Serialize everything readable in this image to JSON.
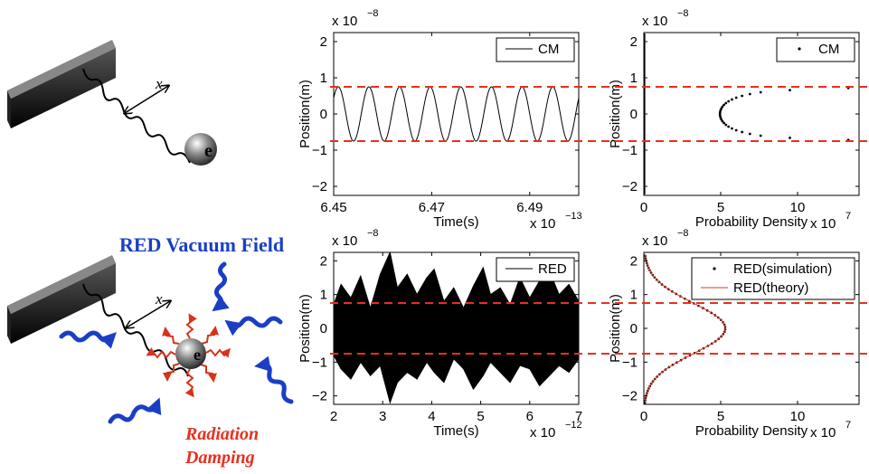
{
  "illustration": {
    "top": {
      "displacement_label": "x",
      "electron_label": "e"
    },
    "bottom": {
      "field_label": "RED Vacuum Field",
      "damping_line1": "Radiation",
      "damping_line2": "Damping",
      "displacement_label": "x",
      "electron_label": "e"
    }
  },
  "colors": {
    "threshold_line": "#e8301e",
    "vacuum_wave": "#1a3fc4",
    "damping_arrow": "#d8321a",
    "theory_line": "#e8301e",
    "plot_ink": "#000000"
  },
  "threshold_lines_y": [
    0.75,
    -0.75
  ],
  "chart_data": [
    {
      "id": "cm_time",
      "type": "line",
      "xlabel": "Time(s)",
      "ylabel": "Position(m)",
      "y_exponent": "x 10",
      "y_exponent_power": "−8",
      "x_exponent": "x 10",
      "x_exponent_power": "−13",
      "xlim": [
        6.45,
        6.5
      ],
      "ylim": [
        -2.25,
        2.25
      ],
      "x_ticks": [
        "6.45",
        "6.47",
        "6.49"
      ],
      "x_tick_values": [
        6.45,
        6.47,
        6.49
      ],
      "y_ticks": [
        "2",
        "1",
        "0",
        "−1",
        "−2"
      ],
      "y_tick_values": [
        2,
        1,
        0,
        -1,
        -2
      ],
      "legend": [
        "CM"
      ],
      "legend_position": "top-right",
      "series": [
        {
          "name": "CM",
          "kind": "sine",
          "amplitude": 0.75,
          "period": 0.00625,
          "phase_x": 6.4525,
          "x_range": [
            6.45,
            6.5
          ]
        }
      ]
    },
    {
      "id": "cm_density",
      "type": "scatter",
      "xlabel": "Probability Density",
      "ylabel": "Position(m)",
      "y_exponent": "x 10",
      "y_exponent_power": "−8",
      "x_exponent": "x 10",
      "x_exponent_power": "7",
      "xlim": [
        0,
        14
      ],
      "ylim": [
        -2.25,
        2.25
      ],
      "x_ticks": [
        "0",
        "5",
        "10"
      ],
      "x_tick_values": [
        0,
        5,
        10
      ],
      "y_ticks": [
        "2",
        "1",
        "0",
        "−1",
        "−2"
      ],
      "y_tick_values": [
        2,
        1,
        0,
        -1,
        -2
      ],
      "legend": [
        "CM"
      ],
      "legend_position": "top-right",
      "series": [
        {
          "name": "CM",
          "points": [
            [
              4.95,
              0
            ],
            [
              4.96,
              -0.05
            ],
            [
              4.96,
              0.05
            ],
            [
              4.99,
              -0.1
            ],
            [
              4.99,
              0.1
            ],
            [
              5.04,
              -0.15
            ],
            [
              5.04,
              0.15
            ],
            [
              5.11,
              -0.2
            ],
            [
              5.11,
              0.2
            ],
            [
              5.21,
              -0.25
            ],
            [
              5.21,
              0.25
            ],
            [
              5.34,
              -0.3
            ],
            [
              5.34,
              0.3
            ],
            [
              5.51,
              -0.35
            ],
            [
              5.51,
              0.35
            ],
            [
              5.73,
              -0.4
            ],
            [
              5.73,
              0.4
            ],
            [
              6.01,
              -0.45
            ],
            [
              6.01,
              0.45
            ],
            [
              6.39,
              -0.5
            ],
            [
              6.39,
              0.5
            ],
            [
              6.9,
              -0.55
            ],
            [
              6.9,
              0.55
            ],
            [
              7.6,
              -0.6
            ],
            [
              7.6,
              0.6
            ],
            [
              9.5,
              -0.66
            ],
            [
              9.5,
              0.66
            ],
            [
              13.3,
              -0.72
            ],
            [
              13.3,
              0.72
            ]
          ],
          "edge_points_x": 0.05,
          "edge_points_y_range": [
            -2.2,
            2.2
          ]
        }
      ]
    },
    {
      "id": "red_time",
      "type": "line",
      "xlabel": "Time(s)",
      "ylabel": "Position(m)",
      "y_exponent": "x 10",
      "y_exponent_power": "−8",
      "x_exponent": "x 10",
      "x_exponent_power": "−12",
      "xlim": [
        2,
        7
      ],
      "ylim": [
        -2.25,
        2.25
      ],
      "x_ticks": [
        "2",
        "3",
        "4",
        "5",
        "6",
        "7"
      ],
      "x_tick_values": [
        2,
        3,
        4,
        5,
        6,
        7
      ],
      "y_ticks": [
        "2",
        "1",
        "0",
        "−1",
        "−2"
      ],
      "y_tick_values": [
        2,
        1,
        0,
        -1,
        -2
      ],
      "legend": [
        "RED"
      ],
      "legend_position": "top-right",
      "series": [
        {
          "name": "RED",
          "kind": "filled-envelope",
          "envelope": [
            [
              2.0,
              0.7
            ],
            [
              2.15,
              1.3
            ],
            [
              2.35,
              0.9
            ],
            [
              2.55,
              1.55
            ],
            [
              2.75,
              0.6
            ],
            [
              2.95,
              1.6
            ],
            [
              3.15,
              2.25
            ],
            [
              3.3,
              1.2
            ],
            [
              3.5,
              1.6
            ],
            [
              3.7,
              1.0
            ],
            [
              3.9,
              1.5
            ],
            [
              4.05,
              1.75
            ],
            [
              4.25,
              0.8
            ],
            [
              4.45,
              1.2
            ],
            [
              4.65,
              0.6
            ],
            [
              4.85,
              1.25
            ],
            [
              5.05,
              1.8
            ],
            [
              5.2,
              1.0
            ],
            [
              5.4,
              1.2
            ],
            [
              5.6,
              0.7
            ],
            [
              5.8,
              1.5
            ],
            [
              6.0,
              0.9
            ],
            [
              6.2,
              1.4
            ],
            [
              6.4,
              1.7
            ],
            [
              6.6,
              1.0
            ],
            [
              6.8,
              1.3
            ],
            [
              7.0,
              0.8
            ]
          ],
          "lower_envelope": [
            [
              2.0,
              -0.8
            ],
            [
              2.15,
              -1.2
            ],
            [
              2.35,
              -1.5
            ],
            [
              2.55,
              -1.0
            ],
            [
              2.75,
              -1.4
            ],
            [
              2.95,
              -1.1
            ],
            [
              3.15,
              -2.2
            ],
            [
              3.3,
              -1.6
            ],
            [
              3.5,
              -1.3
            ],
            [
              3.7,
              -1.5
            ],
            [
              3.9,
              -1.0
            ],
            [
              4.05,
              -1.3
            ],
            [
              4.25,
              -1.6
            ],
            [
              4.45,
              -0.9
            ],
            [
              4.65,
              -1.2
            ],
            [
              4.85,
              -1.8
            ],
            [
              5.05,
              -1.4
            ],
            [
              5.2,
              -1.0
            ],
            [
              5.4,
              -1.3
            ],
            [
              5.6,
              -1.6
            ],
            [
              5.8,
              -1.1
            ],
            [
              6.0,
              -1.2
            ],
            [
              6.2,
              -1.7
            ],
            [
              6.4,
              -1.4
            ],
            [
              6.6,
              -1.1
            ],
            [
              6.8,
              -1.3
            ],
            [
              7.0,
              -0.9
            ]
          ]
        }
      ]
    },
    {
      "id": "red_density",
      "type": "scatter",
      "xlabel": "Probability Density",
      "ylabel": "Position(m)",
      "y_exponent": "x 10",
      "y_exponent_power": "−8",
      "x_exponent": "x 10",
      "x_exponent_power": "7",
      "xlim": [
        0,
        14
      ],
      "ylim": [
        -2.25,
        2.25
      ],
      "x_ticks": [
        "0",
        "5",
        "10"
      ],
      "x_tick_values": [
        0,
        5,
        10
      ],
      "y_ticks": [
        "2",
        "1",
        "0",
        "−1",
        "−2"
      ],
      "y_tick_values": [
        2,
        1,
        0,
        -1,
        -2
      ],
      "legend": [
        "RED(simulation)",
        "RED(theory)"
      ],
      "legend_position": "top-right",
      "series": [
        {
          "name": "RED(simulation)",
          "kind": "gaussian-points",
          "peak": 5.3,
          "sigma": 0.75,
          "y_step": 0.07,
          "y_range": [
            -2.2,
            2.2
          ]
        },
        {
          "name": "RED(theory)",
          "kind": "gaussian-line",
          "peak": 5.3,
          "sigma": 0.75,
          "y_range": [
            -2.2,
            2.2
          ]
        }
      ]
    }
  ]
}
